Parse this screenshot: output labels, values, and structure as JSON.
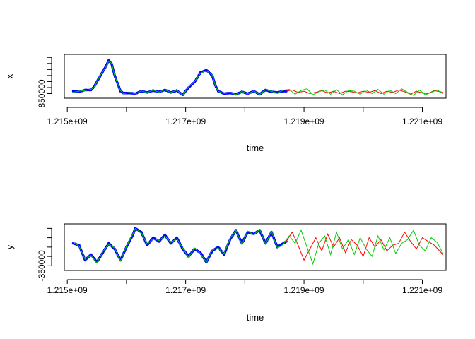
{
  "chart_data": [
    {
      "type": "line",
      "xlabel": "time",
      "ylabel": "x",
      "x_ticks": [
        {
          "value": 1215000000,
          "label": "1.215e+09"
        },
        {
          "value": 1216000000,
          "label": ""
        },
        {
          "value": 1217000000,
          "label": "1.217e+09"
        },
        {
          "value": 1218000000,
          "label": ""
        },
        {
          "value": 1219000000,
          "label": "1.219e+09"
        },
        {
          "value": 1220000000,
          "label": ""
        },
        {
          "value": 1221000000,
          "label": "1.221e+09"
        }
      ],
      "y_ticks": [
        {
          "value": 850000,
          "label": "850000"
        },
        {
          "value": 900000,
          "label": ""
        },
        {
          "value": 950000,
          "label": ""
        },
        {
          "value": 1000000,
          "label": ""
        },
        {
          "value": 1050000,
          "label": ""
        },
        {
          "value": 1100000,
          "label": ""
        },
        {
          "value": 1150000,
          "label": ""
        }
      ],
      "xlim": [
        1214950000,
        1221400000
      ],
      "ylim": [
        812000,
        1175000
      ],
      "series": [
        {
          "color": "#0000ff",
          "style": "points",
          "x": [
            1215100000,
            1215200000,
            1215300000,
            1215400000,
            1215450000,
            1215550000,
            1215650000,
            1215700000,
            1215750000,
            1215800000,
            1215900000,
            1215950000,
            1216050000,
            1216150000,
            1216250000,
            1216350000,
            1216450000,
            1216550000,
            1216650000,
            1216750000,
            1216850000,
            1216950000,
            1217050000,
            1217150000,
            1217250000,
            1217350000,
            1217450000,
            1217500000,
            1217550000,
            1217650000,
            1217750000,
            1217850000,
            1217950000,
            1218050000,
            1218150000,
            1218250000,
            1218350000,
            1218450000,
            1218550000,
            1218650000,
            1218700000
          ],
          "y": [
            870000,
            865000,
            880000,
            880000,
            905000,
            990000,
            1075000,
            1125000,
            1095000,
            1000000,
            870000,
            855000,
            855000,
            850000,
            870000,
            860000,
            875000,
            865000,
            880000,
            860000,
            875000,
            840000,
            900000,
            945000,
            1025000,
            1045000,
            1000000,
            920000,
            870000,
            850000,
            855000,
            845000,
            865000,
            850000,
            870000,
            845000,
            880000,
            865000,
            860000,
            870000,
            870000
          ]
        },
        {
          "color": "#ff0000",
          "style": "line",
          "x": [
            1218700000,
            1218800000,
            1218900000,
            1219000000,
            1219100000,
            1219200000,
            1219300000,
            1219400000,
            1219500000,
            1219600000,
            1219700000,
            1219800000,
            1219900000,
            1220000000,
            1220100000,
            1220200000,
            1220300000,
            1220400000,
            1220500000,
            1220600000,
            1220700000,
            1220800000,
            1220900000,
            1221000000,
            1221100000,
            1221200000,
            1221350000
          ],
          "y": [
            870000,
            880000,
            860000,
            870000,
            850000,
            860000,
            875000,
            855000,
            870000,
            850000,
            870000,
            865000,
            855000,
            870000,
            860000,
            875000,
            850000,
            870000,
            860000,
            880000,
            865000,
            845000,
            870000,
            855000,
            850000,
            875000,
            860000
          ]
        },
        {
          "color": "#00cc00",
          "style": "line",
          "x": [
            1215100000,
            1215200000,
            1215300000,
            1215400000,
            1215450000,
            1215550000,
            1215650000,
            1215700000,
            1215750000,
            1215800000,
            1215900000,
            1215950000,
            1216050000,
            1216150000,
            1216250000,
            1216350000,
            1216450000,
            1216550000,
            1216650000,
            1216750000,
            1216850000,
            1216950000,
            1217050000,
            1217150000,
            1217250000,
            1217350000,
            1217450000,
            1217500000,
            1217550000,
            1217650000,
            1217750000,
            1217850000,
            1217950000,
            1218050000,
            1218150000,
            1218250000,
            1218350000,
            1218450000,
            1218550000,
            1218650000,
            1218750000,
            1218850000,
            1218950000,
            1219050000,
            1219150000,
            1219250000,
            1219350000,
            1219450000,
            1219550000,
            1219650000,
            1219750000,
            1219850000,
            1219950000,
            1220050000,
            1220150000,
            1220250000,
            1220350000,
            1220450000,
            1220550000,
            1220650000,
            1220750000,
            1220850000,
            1220950000,
            1221050000,
            1221150000,
            1221250000,
            1221350000
          ],
          "y": [
            860000,
            870000,
            875000,
            885000,
            900000,
            995000,
            1070000,
            1120000,
            1100000,
            995000,
            875000,
            850000,
            860000,
            848000,
            872000,
            858000,
            878000,
            862000,
            882000,
            858000,
            878000,
            838000,
            905000,
            950000,
            1020000,
            1040000,
            1005000,
            915000,
            868000,
            852000,
            858000,
            842000,
            868000,
            848000,
            872000,
            842000,
            882000,
            868000,
            855000,
            878000,
            885000,
            845000,
            875000,
            890000,
            840000,
            865000,
            880000,
            845000,
            882000,
            840000,
            875000,
            870000,
            845000,
            880000,
            850000,
            885000,
            845000,
            878000,
            850000,
            890000,
            860000,
            835000,
            880000,
            840000,
            860000,
            880000,
            850000
          ]
        }
      ]
    },
    {
      "type": "line",
      "xlabel": "time",
      "ylabel": "y",
      "x_ticks": [
        {
          "value": 1215000000,
          "label": "1.215e+09"
        },
        {
          "value": 1216000000,
          "label": ""
        },
        {
          "value": 1217000000,
          "label": "1.217e+09"
        },
        {
          "value": 1218000000,
          "label": ""
        },
        {
          "value": 1219000000,
          "label": "1.219e+09"
        },
        {
          "value": 1220000000,
          "label": ""
        },
        {
          "value": 1221000000,
          "label": "1.221e+09"
        }
      ],
      "y_ticks": [
        {
          "value": -350000,
          "label": "-350000"
        },
        {
          "value": -300000,
          "label": ""
        },
        {
          "value": -250000,
          "label": ""
        },
        {
          "value": -200000,
          "label": ""
        },
        {
          "value": -150000,
          "label": ""
        }
      ],
      "xlim": [
        1214950000,
        1221400000
      ],
      "ylim": [
        -375000,
        -126000
      ],
      "series": [
        {
          "color": "#0000ff",
          "style": "points",
          "x": [
            1215100000,
            1215200000,
            1215300000,
            1215400000,
            1215500000,
            1215600000,
            1215700000,
            1215800000,
            1215900000,
            1216000000,
            1216100000,
            1216150000,
            1216250000,
            1216350000,
            1216450000,
            1216550000,
            1216650000,
            1216750000,
            1216850000,
            1216950000,
            1217050000,
            1217150000,
            1217250000,
            1217350000,
            1217450000,
            1217550000,
            1217650000,
            1217750000,
            1217850000,
            1217950000,
            1218050000,
            1218150000,
            1218250000,
            1218350000,
            1218450000,
            1218550000,
            1218650000,
            1218700000
          ],
          "y": [
            -230000,
            -240000,
            -320000,
            -290000,
            -330000,
            -280000,
            -230000,
            -260000,
            -320000,
            -250000,
            -190000,
            -150000,
            -170000,
            -240000,
            -200000,
            -220000,
            -185000,
            -230000,
            -200000,
            -260000,
            -300000,
            -260000,
            -280000,
            -330000,
            -270000,
            -250000,
            -290000,
            -210000,
            -160000,
            -230000,
            -170000,
            -180000,
            -160000,
            -230000,
            -170000,
            -250000,
            -230000,
            -220000
          ]
        },
        {
          "color": "#ff0000",
          "style": "line",
          "x": [
            1218700000,
            1218800000,
            1218900000,
            1219000000,
            1219100000,
            1219200000,
            1219300000,
            1219400000,
            1219500000,
            1219600000,
            1219700000,
            1219800000,
            1219900000,
            1220000000,
            1220100000,
            1220200000,
            1220300000,
            1220400000,
            1220500000,
            1220600000,
            1220700000,
            1220800000,
            1220900000,
            1221000000,
            1221100000,
            1221200000,
            1221350000
          ],
          "y": [
            -220000,
            -170000,
            -240000,
            -320000,
            -260000,
            -200000,
            -270000,
            -180000,
            -250000,
            -200000,
            -280000,
            -210000,
            -240000,
            -300000,
            -200000,
            -250000,
            -210000,
            -270000,
            -240000,
            -230000,
            -170000,
            -220000,
            -260000,
            -200000,
            -220000,
            -240000,
            -290000
          ]
        },
        {
          "color": "#00cc00",
          "style": "line",
          "x": [
            1215100000,
            1215200000,
            1215300000,
            1215400000,
            1215500000,
            1215600000,
            1215700000,
            1215800000,
            1215900000,
            1216000000,
            1216100000,
            1216150000,
            1216250000,
            1216350000,
            1216450000,
            1216550000,
            1216650000,
            1216750000,
            1216850000,
            1216950000,
            1217050000,
            1217150000,
            1217250000,
            1217350000,
            1217450000,
            1217550000,
            1217650000,
            1217750000,
            1217850000,
            1217950000,
            1218050000,
            1218150000,
            1218250000,
            1218350000,
            1218450000,
            1218550000,
            1218650000,
            1218750000,
            1218850000,
            1218950000,
            1219050000,
            1219150000,
            1219250000,
            1219350000,
            1219450000,
            1219550000,
            1219650000,
            1219750000,
            1219850000,
            1219950000,
            1220050000,
            1220150000,
            1220250000,
            1220350000,
            1220450000,
            1220550000,
            1220650000,
            1220750000,
            1220850000,
            1220950000,
            1221050000,
            1221150000,
            1221250000,
            1221350000
          ],
          "y": [
            -225000,
            -245000,
            -315000,
            -295000,
            -335000,
            -275000,
            -235000,
            -255000,
            -325000,
            -245000,
            -185000,
            -150000,
            -175000,
            -235000,
            -205000,
            -215000,
            -190000,
            -225000,
            -205000,
            -255000,
            -305000,
            -255000,
            -285000,
            -330000,
            -265000,
            -255000,
            -285000,
            -205000,
            -160000,
            -235000,
            -165000,
            -185000,
            -155000,
            -235000,
            -165000,
            -255000,
            -235000,
            -190000,
            -230000,
            -160000,
            -250000,
            -340000,
            -230000,
            -190000,
            -290000,
            -170000,
            -260000,
            -210000,
            -290000,
            -200000,
            -260000,
            -300000,
            -190000,
            -265000,
            -200000,
            -285000,
            -230000,
            -210000,
            -160000,
            -240000,
            -270000,
            -200000,
            -225000,
            -285000
          ]
        }
      ]
    }
  ]
}
